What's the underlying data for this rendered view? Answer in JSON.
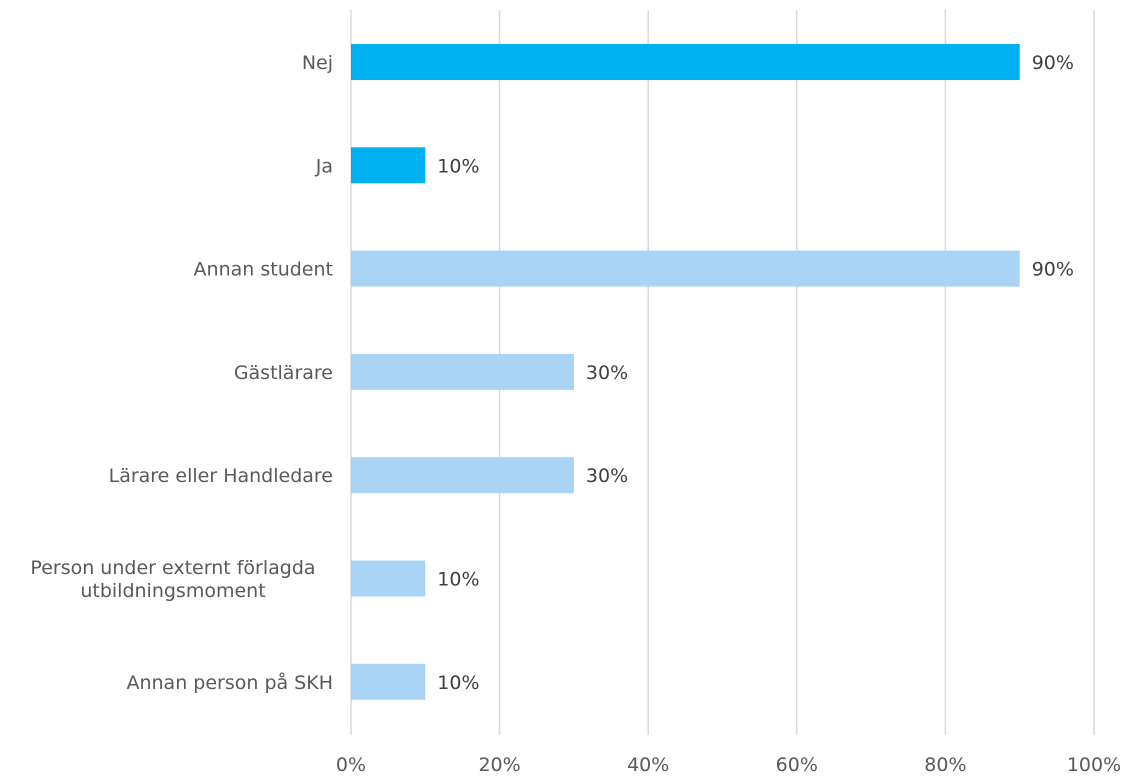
{
  "chart_data": {
    "type": "bar",
    "orientation": "horizontal",
    "categories": [
      [
        "Nej"
      ],
      [
        "Ja"
      ],
      [
        "Annan student"
      ],
      [
        "Gästlärare"
      ],
      [
        "Lärare eller Handledare"
      ],
      [
        "Person under externt förlagda",
        "utbildningsmoment"
      ],
      [
        "Annan person på SKH"
      ]
    ],
    "values": [
      90,
      10,
      90,
      30,
      30,
      10,
      10
    ],
    "data_labels": [
      "90%",
      "10%",
      "90%",
      "30%",
      "30%",
      "10%",
      "10%"
    ],
    "bar_colors": [
      "#00b0f0",
      "#00b0f0",
      "#a9d4f5",
      "#a9d4f5",
      "#a9d4f5",
      "#a9d4f5",
      "#a9d4f5"
    ],
    "xlim": [
      0,
      100
    ],
    "x_ticks": [
      0,
      20,
      40,
      60,
      80,
      100
    ],
    "x_tick_labels": [
      "0%",
      "20%",
      "40%",
      "60%",
      "80%",
      "100%"
    ],
    "grid": true,
    "grid_color": "#d9d9d9",
    "text_color": "#595959",
    "label_color": "#404040"
  }
}
